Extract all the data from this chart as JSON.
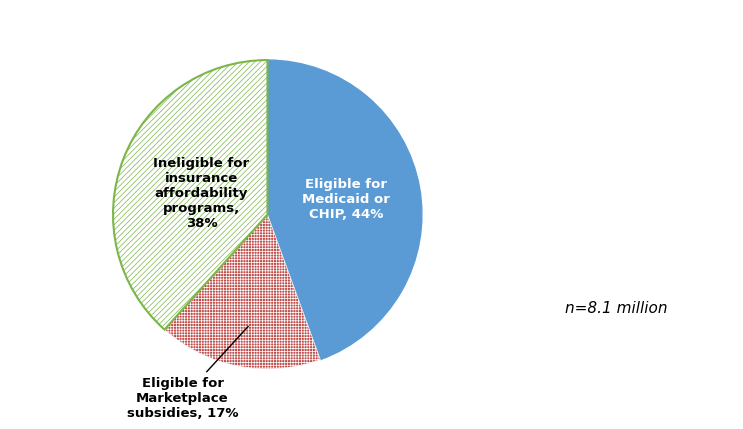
{
  "slices": [
    44,
    17,
    38
  ],
  "colors": [
    "#5B9BD5",
    "#C0504D",
    "#ffffff"
  ],
  "edge_colors": [
    "#5B9BD5",
    "#C0504D",
    "#7AB648"
  ],
  "hatch_patterns": [
    "",
    "++++++",
    "//////"
  ],
  "startangle": 90,
  "label0": "Eligible for\nMedicaid or\nCHIP, 44%",
  "label0_color": "white",
  "label2": "Ineligible for\ninsurance\naffordability\nprograms,\n38%",
  "label2_color": "black",
  "annotate_text": "Eligible for\nMarketplace\nsubsidies, 17%",
  "annotation_note": "n=8.1 million",
  "background_color": "#ffffff",
  "figsize": [
    7.43,
    4.29
  ],
  "dpi": 100
}
